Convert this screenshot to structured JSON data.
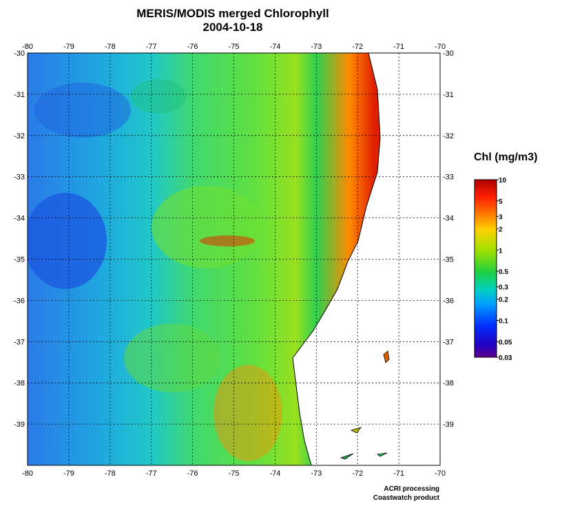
{
  "title": {
    "line1": "MERIS/MODIS merged Chlorophyll",
    "line2": "2004-10-18"
  },
  "map": {
    "lon_ticks": [
      "-80",
      "-79",
      "-78",
      "-77",
      "-76",
      "-75",
      "-74",
      "-73",
      "-72",
      "-71",
      "-70"
    ],
    "lat_ticks": [
      "-30",
      "-31",
      "-32",
      "-33",
      "-34",
      "-35",
      "-36",
      "-37",
      "-38",
      "-39"
    ],
    "land_color": "#ffffff",
    "coast_color": "#000000"
  },
  "legend": {
    "title": "Chl (mg/m3)",
    "labels": [
      "10",
      "5",
      "3",
      "2",
      "1",
      "0.5",
      "0.3",
      "0.2",
      "0.1",
      "0.05",
      "0.03"
    ],
    "colors": [
      "#b00000",
      "#ff2000",
      "#ff8000",
      "#ffd000",
      "#a0e000",
      "#20d040",
      "#00d0c0",
      "#00a0ff",
      "#0030ff",
      "#2000c0",
      "#600090"
    ]
  },
  "credits": {
    "line1": "ACRI processing",
    "line2": "Coastwatch product"
  }
}
